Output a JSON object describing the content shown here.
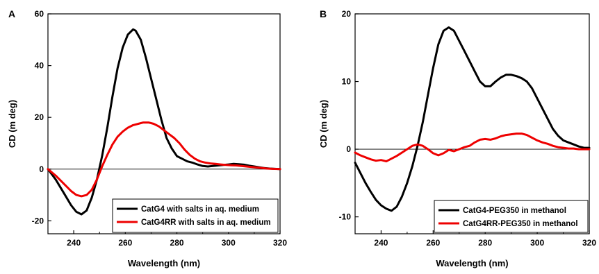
{
  "chart_data": [
    {
      "type": "line",
      "panel_label": "A",
      "xlabel": "Wavelength (nm)",
      "ylabel": "CD  (m deg)",
      "xlim": [
        230,
        320
      ],
      "ylim": [
        -25,
        60
      ],
      "xticks": [
        240,
        260,
        280,
        300,
        320
      ],
      "yticks": [
        -20,
        0,
        20,
        40,
        60
      ],
      "zero_line": true,
      "grid": false,
      "legend_position": "bottom-right",
      "series": [
        {
          "name": "CatG4 with salts in aq. medium",
          "color": "#000000",
          "x": [
            230,
            233,
            236,
            239,
            241,
            243,
            245,
            247,
            249,
            251,
            253,
            255,
            257,
            259,
            261,
            263,
            264,
            266,
            268,
            270,
            272,
            274,
            276,
            278,
            280,
            282,
            284,
            286,
            288,
            290,
            292,
            294,
            296,
            298,
            300,
            302,
            304,
            306,
            308,
            310,
            312,
            314,
            316,
            318,
            320
          ],
          "y": [
            0,
            -4,
            -9,
            -14,
            -16.5,
            -17.5,
            -16,
            -11,
            -4,
            5,
            16,
            28,
            39,
            47,
            52,
            54,
            53.5,
            50,
            43,
            35,
            27,
            19,
            12,
            8,
            5,
            4,
            3,
            2.5,
            1.8,
            1.2,
            1,
            1.2,
            1.4,
            1.6,
            1.8,
            2,
            1.9,
            1.7,
            1.3,
            1,
            0.7,
            0.4,
            0.2,
            0.1,
            0
          ]
        },
        {
          "name": "CatG4RR with salts in aq. medium",
          "color": "#ee0000",
          "x": [
            230,
            233,
            236,
            239,
            241,
            243,
            245,
            247,
            249,
            251,
            253,
            255,
            257,
            259,
            261,
            263,
            265,
            267,
            269,
            271,
            273,
            275,
            277,
            279,
            281,
            283,
            285,
            287,
            289,
            291,
            293,
            295,
            297,
            299,
            301,
            303,
            305,
            307,
            309,
            311,
            313,
            315,
            317,
            320
          ],
          "y": [
            0,
            -2.5,
            -5.5,
            -8.5,
            -10,
            -10.5,
            -10,
            -8,
            -4,
            1,
            5.5,
            9.5,
            12.5,
            14.5,
            16,
            17,
            17.5,
            18,
            18,
            17.5,
            16.5,
            15,
            13.5,
            12,
            10,
            7.5,
            5.5,
            4,
            3,
            2.5,
            2.2,
            2,
            1.8,
            1.6,
            1.5,
            1.4,
            1.2,
            1,
            0.8,
            0.6,
            0.4,
            0.2,
            0.1,
            0
          ]
        }
      ]
    },
    {
      "type": "line",
      "panel_label": "B",
      "xlabel": "Wavelength (nm)",
      "ylabel": "CD  (m deg)",
      "xlim": [
        230,
        320
      ],
      "ylim": [
        -12.5,
        20
      ],
      "xticks": [
        240,
        260,
        280,
        300,
        320
      ],
      "yticks": [
        -10,
        0,
        10,
        20
      ],
      "zero_line": true,
      "grid": false,
      "legend_position": "bottom-right",
      "series": [
        {
          "name": "CatG4-PEG350 in methanol",
          "color": "#000000",
          "x": [
            230,
            232,
            234,
            236,
            238,
            240,
            242,
            244,
            246,
            248,
            250,
            252,
            254,
            256,
            258,
            260,
            262,
            264,
            266,
            268,
            270,
            272,
            274,
            276,
            278,
            280,
            282,
            284,
            286,
            288,
            290,
            292,
            294,
            296,
            298,
            300,
            302,
            304,
            306,
            308,
            310,
            312,
            314,
            316,
            318,
            320
          ],
          "y": [
            -2,
            -3.5,
            -5,
            -6.3,
            -7.5,
            -8.3,
            -8.8,
            -9.1,
            -8.5,
            -7,
            -5,
            -2.5,
            0.5,
            4,
            8,
            12,
            15.5,
            17.5,
            18,
            17.5,
            16,
            14.5,
            13,
            11.5,
            10,
            9.3,
            9.3,
            10,
            10.6,
            11,
            11,
            10.8,
            10.5,
            10,
            9,
            7.5,
            6,
            4.5,
            3,
            2,
            1.3,
            1,
            0.7,
            0.4,
            0.2,
            0.2
          ]
        },
        {
          "name": "CatG4RR-PEG350 in methanol",
          "color": "#ee0000",
          "x": [
            230,
            232,
            234,
            236,
            238,
            240,
            242,
            244,
            246,
            248,
            250,
            252,
            254,
            256,
            258,
            260,
            262,
            264,
            266,
            268,
            270,
            272,
            274,
            276,
            278,
            280,
            282,
            284,
            286,
            288,
            290,
            292,
            294,
            296,
            298,
            300,
            302,
            304,
            306,
            308,
            310,
            312,
            314,
            316,
            318,
            320
          ],
          "y": [
            -0.5,
            -0.9,
            -1.2,
            -1.5,
            -1.7,
            -1.6,
            -1.8,
            -1.4,
            -1,
            -0.5,
            0,
            0.5,
            0.7,
            0.5,
            0,
            -0.6,
            -0.9,
            -0.6,
            -0.1,
            -0.3,
            0,
            0.3,
            0.5,
            1,
            1.4,
            1.5,
            1.4,
            1.6,
            1.9,
            2.1,
            2.2,
            2.3,
            2.3,
            2.1,
            1.7,
            1.3,
            1,
            0.8,
            0.5,
            0.3,
            0.2,
            0.1,
            0.1,
            0,
            0,
            0
          ]
        }
      ]
    }
  ]
}
